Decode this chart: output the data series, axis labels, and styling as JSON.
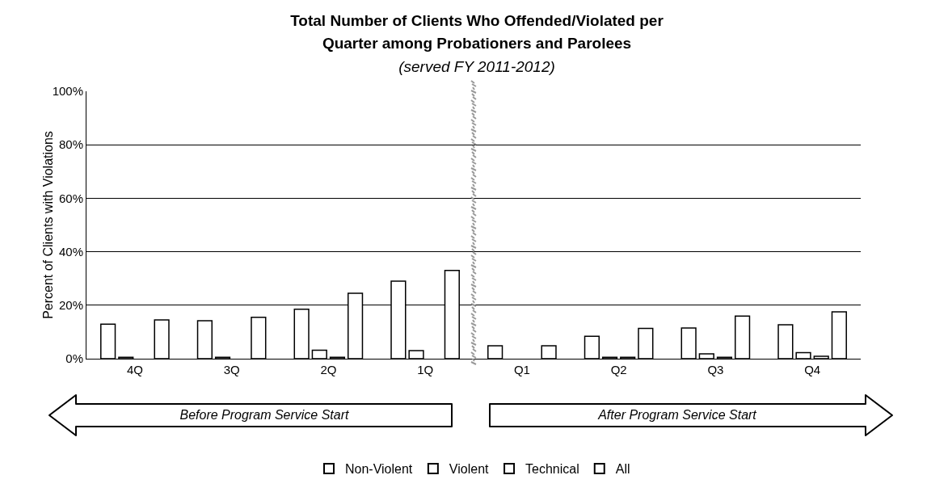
{
  "chart_data": {
    "type": "bar",
    "title": "Total Number of Clients Who Offended/Violated per Quarter among Probationers and Parolees",
    "subtitle": "(served FY 2011-2012)",
    "ylabel": "Percent of Clients with Violations",
    "categories": [
      "4Q",
      "3Q",
      "2Q",
      "1Q",
      "Q1",
      "Q2",
      "Q3",
      "Q4"
    ],
    "series": [
      {
        "name": "Non-Violent",
        "color": "#ffffff",
        "values": [
          12.9,
          14.2,
          18.5,
          29,
          4.8,
          8.4,
          11.5,
          12.7
        ]
      },
      {
        "name": "Violent",
        "color": "#ffffff",
        "values": [
          0.5,
          0.5,
          3.2,
          3,
          null,
          0.5,
          1.8,
          2.3
        ]
      },
      {
        "name": "Technical",
        "color": "#ffffff",
        "values": [
          null,
          null,
          0.5,
          null,
          null,
          0.5,
          0.5,
          0.9
        ]
      },
      {
        "name": "All",
        "color": "#ffffff",
        "values": [
          14.5,
          15.5,
          24.5,
          33,
          4.8,
          11.3,
          15.9,
          17.5
        ]
      }
    ],
    "ylim": [
      0,
      100
    ],
    "yticks": [
      {
        "value": 0,
        "label": "0%"
      },
      {
        "value": 20,
        "label": "20%"
      },
      {
        "value": 40,
        "label": "40%"
      },
      {
        "value": 60,
        "label": "60%"
      },
      {
        "value": 80,
        "label": "80%"
      },
      {
        "value": 100,
        "label": "100%"
      }
    ],
    "grid": "y",
    "legend": "bottom",
    "marker": "square",
    "annotations": [
      "Before Program Service Start",
      "After Program Service Start"
    ]
  }
}
